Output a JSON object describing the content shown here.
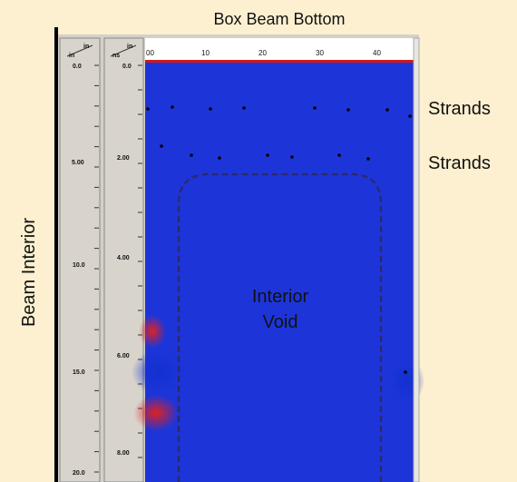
{
  "header": {
    "title": "Box Beam Bottom"
  },
  "side_label": "Beam Interior",
  "annotations": {
    "strands": [
      "Strands",
      "Strands"
    ],
    "void": [
      "Interior",
      "Void"
    ]
  },
  "scan": {
    "depth_unit": [
      "in",
      "in"
    ],
    "time_unit": [
      "in",
      "ns"
    ],
    "depth_ticks": [
      "0.0",
      "5.00",
      "10.0",
      "15.0",
      "20.0"
    ],
    "time_ticks": [
      "0.0",
      "2.00",
      "4.00",
      "6.00",
      "8.00"
    ],
    "distance_ticks": [
      "00",
      "10",
      "20",
      "30",
      "40"
    ]
  }
}
